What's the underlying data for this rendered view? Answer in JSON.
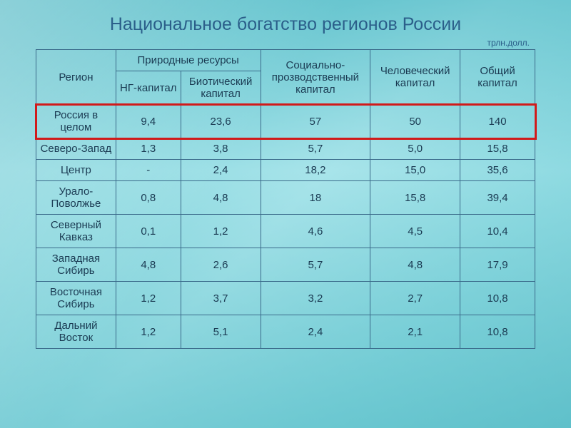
{
  "title": "Национальное богатство регионов России",
  "unit_label": "трлн.долл.",
  "headers": {
    "region": "Регион",
    "natural_resources": "Природные ресурсы",
    "ng_capital": "НГ-капитал",
    "biotic_capital": "Биотический капитал",
    "social_prod_capital": "Социально-прозводственный капитал",
    "human_capital": "Человеческий капитал",
    "total_capital": "Общий капитал"
  },
  "rows": [
    {
      "region": "Россия в целом",
      "ng": "9,4",
      "bio": "23,6",
      "soc": "57",
      "hum": "50",
      "tot": "140",
      "highlight": true
    },
    {
      "region": "Северо-Запад",
      "ng": "1,3",
      "bio": "3,8",
      "soc": "5,7",
      "hum": "5,0",
      "tot": "15,8",
      "highlight": false
    },
    {
      "region": "Центр",
      "ng": "-",
      "bio": "2,4",
      "soc": "18,2",
      "hum": "15,0",
      "tot": "35,6",
      "highlight": false
    },
    {
      "region": "Урало-Поволжье",
      "ng": "0,8",
      "bio": "4,8",
      "soc": "18",
      "hum": "15,8",
      "tot": "39,4",
      "highlight": false
    },
    {
      "region": "Северный Кавказ",
      "ng": "0,1",
      "bio": "1,2",
      "soc": "4,6",
      "hum": "4,5",
      "tot": "10,4",
      "highlight": false
    },
    {
      "region": "Западная Сибирь",
      "ng": "4,8",
      "bio": "2,6",
      "soc": "5,7",
      "hum": "4,8",
      "tot": "17,9",
      "highlight": false
    },
    {
      "region": "Восточная Сибирь",
      "ng": "1,2",
      "bio": "3,7",
      "soc": "3,2",
      "hum": "2,7",
      "tot": "10,8",
      "highlight": false
    },
    {
      "region": "Дальний Восток",
      "ng": "1,2",
      "bio": "5,1",
      "soc": "2,4",
      "hum": "2,1",
      "tot": "10,8",
      "highlight": false
    }
  ],
  "style": {
    "title_color": "#2b5f8a",
    "text_color": "#1a3a52",
    "border_color": "#3a6a8a",
    "highlight_border": "#d11a1a",
    "bg_gradient": [
      "#4fb8c4",
      "#7dd3db",
      "#a8e4ea",
      "#7dd3db",
      "#5fc0ca"
    ],
    "title_fontsize": 25,
    "cell_fontsize": 15,
    "unit_fontsize": 12,
    "col_widths_pct": [
      16,
      13,
      16,
      22,
      18,
      15
    ]
  }
}
